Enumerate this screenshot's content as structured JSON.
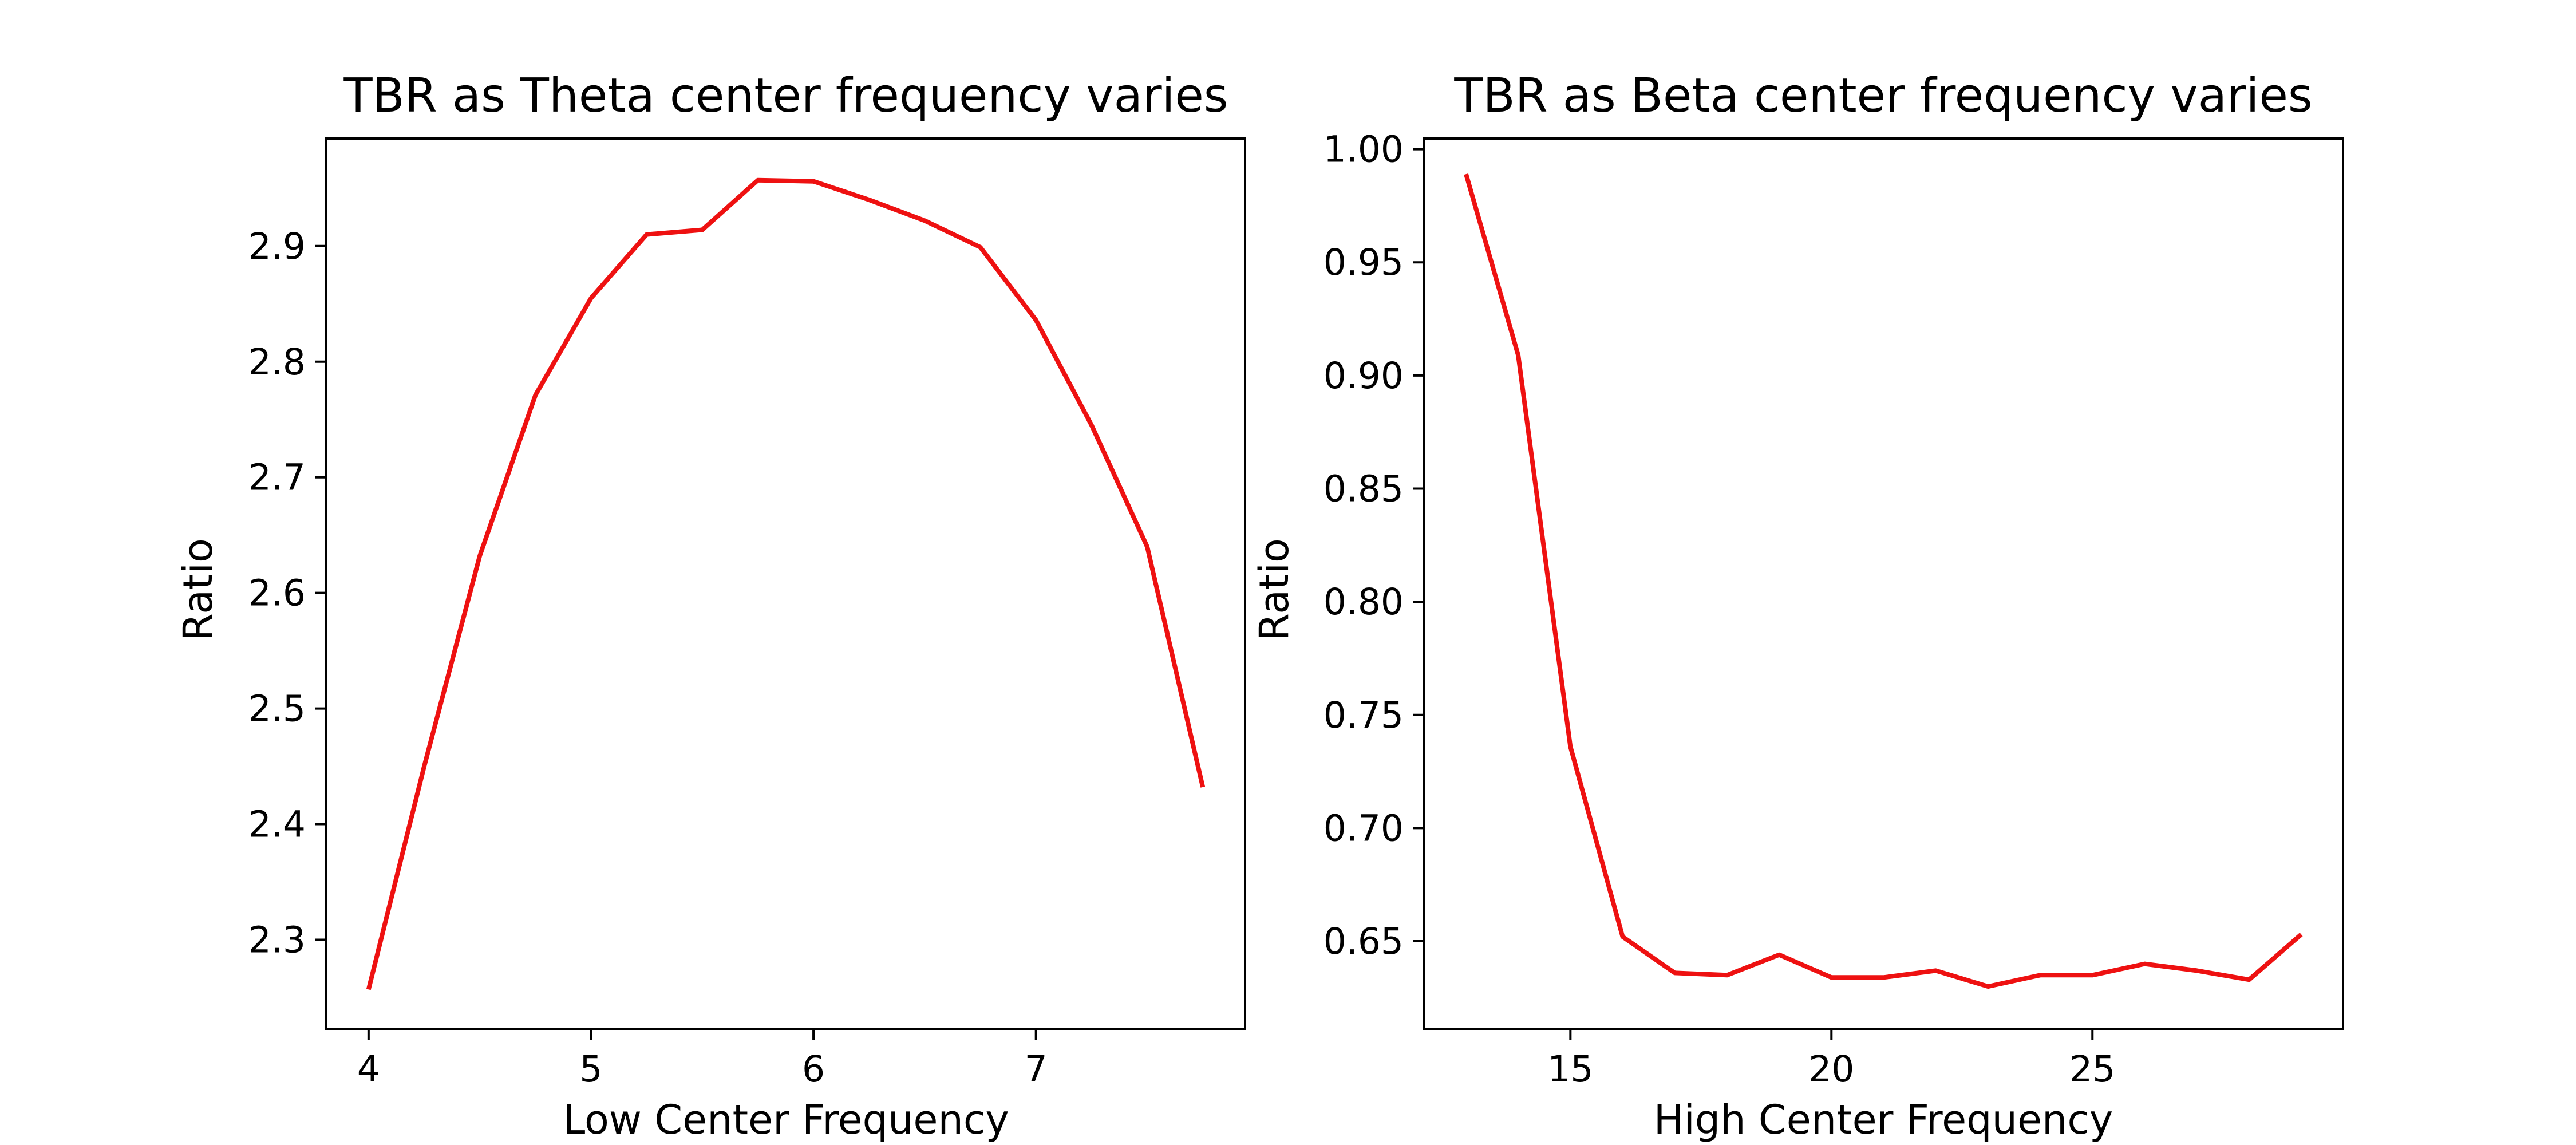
{
  "chart_data": [
    {
      "type": "line",
      "title": "TBR as Theta center frequency varies",
      "xlabel": "Low Center Frequency",
      "ylabel": "Ratio",
      "xlim": [
        3.81,
        7.94
      ],
      "ylim": [
        2.223,
        2.993
      ],
      "xticks": [
        4,
        5,
        6,
        7
      ],
      "yticks": [
        2.3,
        2.4,
        2.5,
        2.6,
        2.7,
        2.8,
        2.9
      ],
      "grid": false,
      "color": "#ee1111",
      "x": [
        4.0,
        4.25,
        4.5,
        4.75,
        5.0,
        5.25,
        5.5,
        5.75,
        6.0,
        6.25,
        6.5,
        6.75,
        7.0,
        7.25,
        7.5,
        7.75
      ],
      "y": [
        2.257,
        2.45,
        2.632,
        2.771,
        2.855,
        2.91,
        2.914,
        2.957,
        2.956,
        2.94,
        2.922,
        2.899,
        2.836,
        2.745,
        2.64,
        2.432
      ]
    },
    {
      "type": "line",
      "title": "TBR as Beta center frequency varies",
      "xlabel": "High Center Frequency",
      "ylabel": "Ratio",
      "xlim": [
        12.2,
        29.8
      ],
      "ylim": [
        0.6113,
        1.0047
      ],
      "xticks": [
        15,
        20,
        25
      ],
      "yticks": [
        0.65,
        0.7,
        0.75,
        0.8,
        0.85,
        0.9,
        0.95,
        1.0
      ],
      "grid": false,
      "color": "#ee1111",
      "x": [
        13,
        14,
        15,
        16,
        17,
        18,
        19,
        20,
        21,
        22,
        23,
        24,
        25,
        26,
        27,
        28,
        29
      ],
      "y": [
        0.989,
        0.909,
        0.736,
        0.652,
        0.636,
        0.635,
        0.644,
        0.634,
        0.634,
        0.637,
        0.63,
        0.635,
        0.635,
        0.64,
        0.637,
        0.633,
        0.653
      ]
    }
  ]
}
